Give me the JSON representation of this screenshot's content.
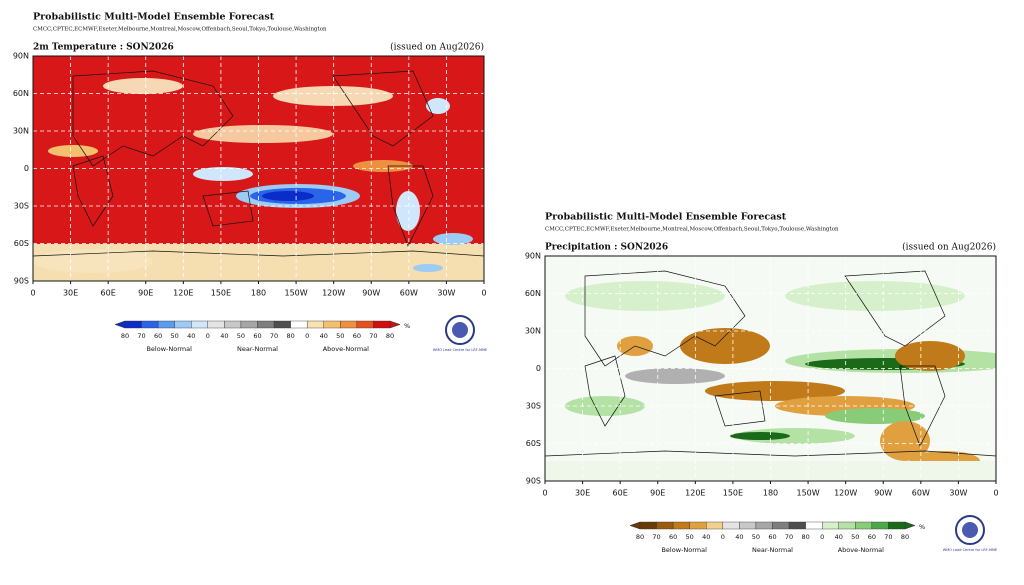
{
  "panels": [
    {
      "title": "Probabilistic Multi-Model Ensemble Forecast",
      "models": "CMCC,CPTEC,ECMWF,Exeter,Melbourne,Montreal,Moscow,Offenbach,Seoul,Tokyo,Toulouse,Washington",
      "subtitle": "2m Temperature : SON2026",
      "issued": "(issued on Aug2026)",
      "lat_labels": [
        "90N",
        "60N",
        "30N",
        "0",
        "30S",
        "60S",
        "90S"
      ],
      "lon_labels": [
        "0",
        "30E",
        "60E",
        "90E",
        "120E",
        "150E",
        "180",
        "150W",
        "120W",
        "90W",
        "60W",
        "30W",
        "0"
      ],
      "colorbar_labels": [
        "80",
        "70",
        "60",
        "50",
        "40",
        "0",
        "40",
        "50",
        "60",
        "70",
        "80",
        "0",
        "40",
        "50",
        "60",
        "70",
        "80"
      ],
      "colorbar_unit": "%",
      "colorbar_colors": [
        "#0a2cc8",
        "#2a64e8",
        "#5a9cf0",
        "#9ccbf5",
        "#d0e6fa",
        "#ffffff",
        "#e4e4e4",
        "#c8c8c8",
        "#a6a6a6",
        "#7e7e7e",
        "#4e4e4e",
        "#ffffff",
        "#f9e2ae",
        "#f4c070",
        "#ef9040",
        "#e65020",
        "#d01010"
      ],
      "categories": [
        "Below-Normal",
        "Near-Normal",
        "Above-Normal"
      ],
      "logo_text": "WMO Lead Centre for LRF-MME"
    },
    {
      "title": "Probabilistic Multi-Model Ensemble Forecast",
      "models": "CMCC,CPTEC,ECMWF,Exeter,Melbourne,Montreal,Moscow,Offenbach,Seoul,Tokyo,Toulouse,Washington",
      "subtitle": "Precipitation : SON2026",
      "issued": "(issued on Aug2026)",
      "lat_labels": [
        "90N",
        "60N",
        "30N",
        "0",
        "30S",
        "60S",
        "90S"
      ],
      "lon_labels": [
        "0",
        "30E",
        "60E",
        "90E",
        "120E",
        "150E",
        "180",
        "150W",
        "120W",
        "90W",
        "60W",
        "30W",
        "0"
      ],
      "colorbar_labels": [
        "80",
        "70",
        "60",
        "50",
        "40",
        "0",
        "40",
        "50",
        "60",
        "70",
        "80",
        "0",
        "40",
        "50",
        "60",
        "70",
        "80"
      ],
      "colorbar_unit": "%",
      "colorbar_colors": [
        "#6a3a06",
        "#9a5a10",
        "#c07a1a",
        "#e0a040",
        "#f2d08a",
        "#ffffff",
        "#e4e4e4",
        "#c8c8c8",
        "#a6a6a6",
        "#7e7e7e",
        "#4e4e4e",
        "#ffffff",
        "#d6f0cc",
        "#b4e2a4",
        "#88cc78",
        "#4ea848",
        "#1a6a1a"
      ],
      "categories": [
        "Below-Normal",
        "Near-Normal",
        "Above-Normal"
      ],
      "logo_text": "WMO Lead Centre for LRF-MME"
    }
  ]
}
